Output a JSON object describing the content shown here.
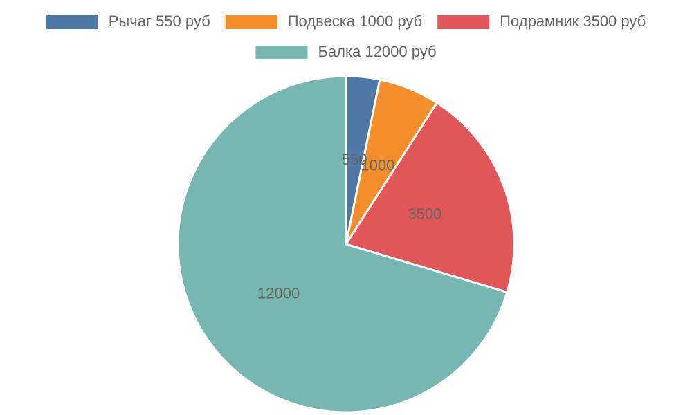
{
  "chart_data": {
    "type": "pie",
    "categories": [
      "Рычаг 550 руб",
      "Подвеска 1000 руб",
      "Подрамник 3500 руб",
      "Балка 12000 руб"
    ],
    "values": [
      550,
      1000,
      3500,
      12000
    ],
    "colors": [
      "#4e79a7",
      "#f28e2b",
      "#e15759",
      "#76b7b2"
    ],
    "legend": "top"
  }
}
